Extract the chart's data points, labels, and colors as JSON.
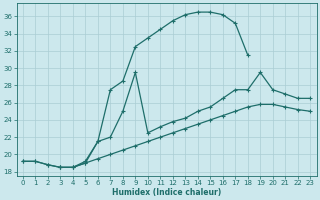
{
  "xlabel": "Humidex (Indice chaleur)",
  "bg_color": "#cce8ed",
  "grid_color": "#aacdd4",
  "line_color": "#1e6e6a",
  "xlim": [
    -0.5,
    23.5
  ],
  "ylim": [
    17.5,
    37.5
  ],
  "yticks": [
    18,
    20,
    22,
    24,
    26,
    28,
    30,
    32,
    34,
    36
  ],
  "xticks": [
    0,
    1,
    2,
    3,
    4,
    5,
    6,
    7,
    8,
    9,
    10,
    11,
    12,
    13,
    14,
    15,
    16,
    17,
    18,
    19,
    20,
    21,
    22,
    23
  ],
  "line1_x": [
    0,
    1,
    2,
    3,
    4,
    5,
    6,
    7,
    8,
    9,
    10,
    11,
    12,
    13,
    14,
    15,
    16,
    17,
    18
  ],
  "line1_y": [
    19.2,
    19.2,
    18.8,
    18.5,
    18.5,
    19.2,
    21.5,
    27.5,
    28.5,
    32.5,
    33.5,
    34.5,
    35.5,
    36.2,
    36.5,
    36.5,
    36.2,
    35.2,
    31.5
  ],
  "line2_x": [
    0,
    1,
    2,
    3,
    4,
    5,
    6,
    7,
    8,
    9,
    10,
    11,
    12,
    13,
    14,
    15,
    16,
    17,
    18,
    19,
    20,
    21,
    22,
    23
  ],
  "line2_y": [
    19.2,
    19.2,
    18.8,
    18.5,
    18.5,
    19.0,
    19.5,
    20.0,
    20.5,
    21.0,
    21.5,
    22.0,
    22.5,
    23.0,
    23.5,
    24.0,
    24.5,
    25.0,
    25.5,
    25.8,
    25.8,
    25.5,
    25.2,
    25.0
  ],
  "line3_x": [
    3,
    4,
    5,
    6,
    7,
    8,
    9,
    10,
    11,
    12,
    13,
    14,
    15,
    16,
    17,
    18,
    19,
    20,
    21,
    22,
    23
  ],
  "line3_y": [
    18.5,
    18.5,
    19.0,
    21.5,
    22.0,
    25.0,
    29.5,
    22.5,
    23.2,
    23.8,
    24.2,
    25.0,
    25.5,
    26.5,
    27.5,
    27.5,
    29.5,
    27.5,
    27.0,
    26.5,
    26.5
  ]
}
